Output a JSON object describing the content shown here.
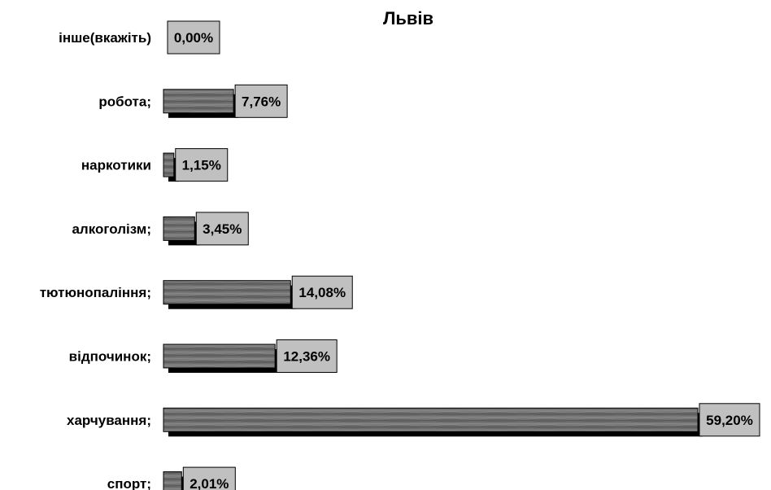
{
  "chart_data": {
    "type": "bar",
    "orientation": "horizontal",
    "title": "Львів",
    "categories": [
      "інше(вкажіть)",
      "робота;",
      "наркотики",
      "алкоголізм;",
      "тютюнопаління;",
      "відпочинок;",
      "харчування;",
      "спорт;"
    ],
    "values": [
      0.0,
      7.76,
      1.15,
      3.45,
      14.08,
      12.36,
      59.2,
      2.01
    ],
    "data_labels": [
      "0,00%",
      "7,76%",
      "1,15%",
      "3,45%",
      "14,08%",
      "12,36%",
      "59,20%",
      "2,01%"
    ],
    "xlim": [
      0,
      59.2
    ],
    "grid": false,
    "legend": "none",
    "colors": {
      "bar": "#6e6e6e",
      "bar_shadow": "#000000",
      "label_box": "#c0c0c0"
    }
  }
}
